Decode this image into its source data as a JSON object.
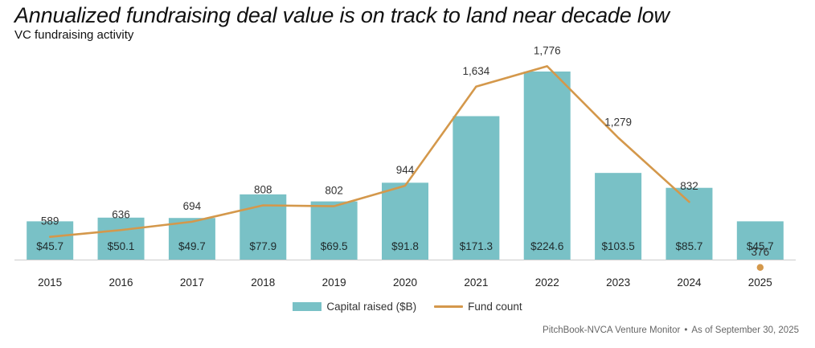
{
  "header": {
    "title": "Annualized fundraising deal value is on track to land near decade low",
    "subtitle": "VC fundraising activity"
  },
  "source": {
    "name": "PitchBook-NVCA Venture Monitor",
    "separator": "•",
    "date": "As of September 30, 2025"
  },
  "colors": {
    "bar": "#79c1c6",
    "line": "#d4984b",
    "axis": "#cccccc"
  },
  "chart_data": {
    "type": "bar",
    "categories": [
      "2015",
      "2016",
      "2017",
      "2018",
      "2019",
      "2020",
      "2021",
      "2022",
      "2023",
      "2024",
      "2025"
    ],
    "series": [
      {
        "name": "Capital raised ($B)",
        "type": "bar",
        "values": [
          45.7,
          50.1,
          49.7,
          77.9,
          69.5,
          91.8,
          171.3,
          224.6,
          103.5,
          85.7,
          45.7
        ],
        "labels": [
          "$45.7",
          "$50.1",
          "$49.7",
          "$77.9",
          "$69.5",
          "$91.8",
          "$171.3",
          "$224.6",
          "$103.5",
          "$85.7",
          "$45.7"
        ]
      },
      {
        "name": "Fund count",
        "type": "line",
        "values": [
          589,
          636,
          694,
          808,
          802,
          944,
          1634,
          1776,
          1279,
          832,
          376
        ],
        "labels": [
          "589",
          "636",
          "694",
          "808",
          "802",
          "944",
          "1,634",
          "1,776",
          "1,279",
          "832",
          "376"
        ],
        "marker_only_last": true
      }
    ],
    "legend": "bottom-center",
    "grid": false
  }
}
